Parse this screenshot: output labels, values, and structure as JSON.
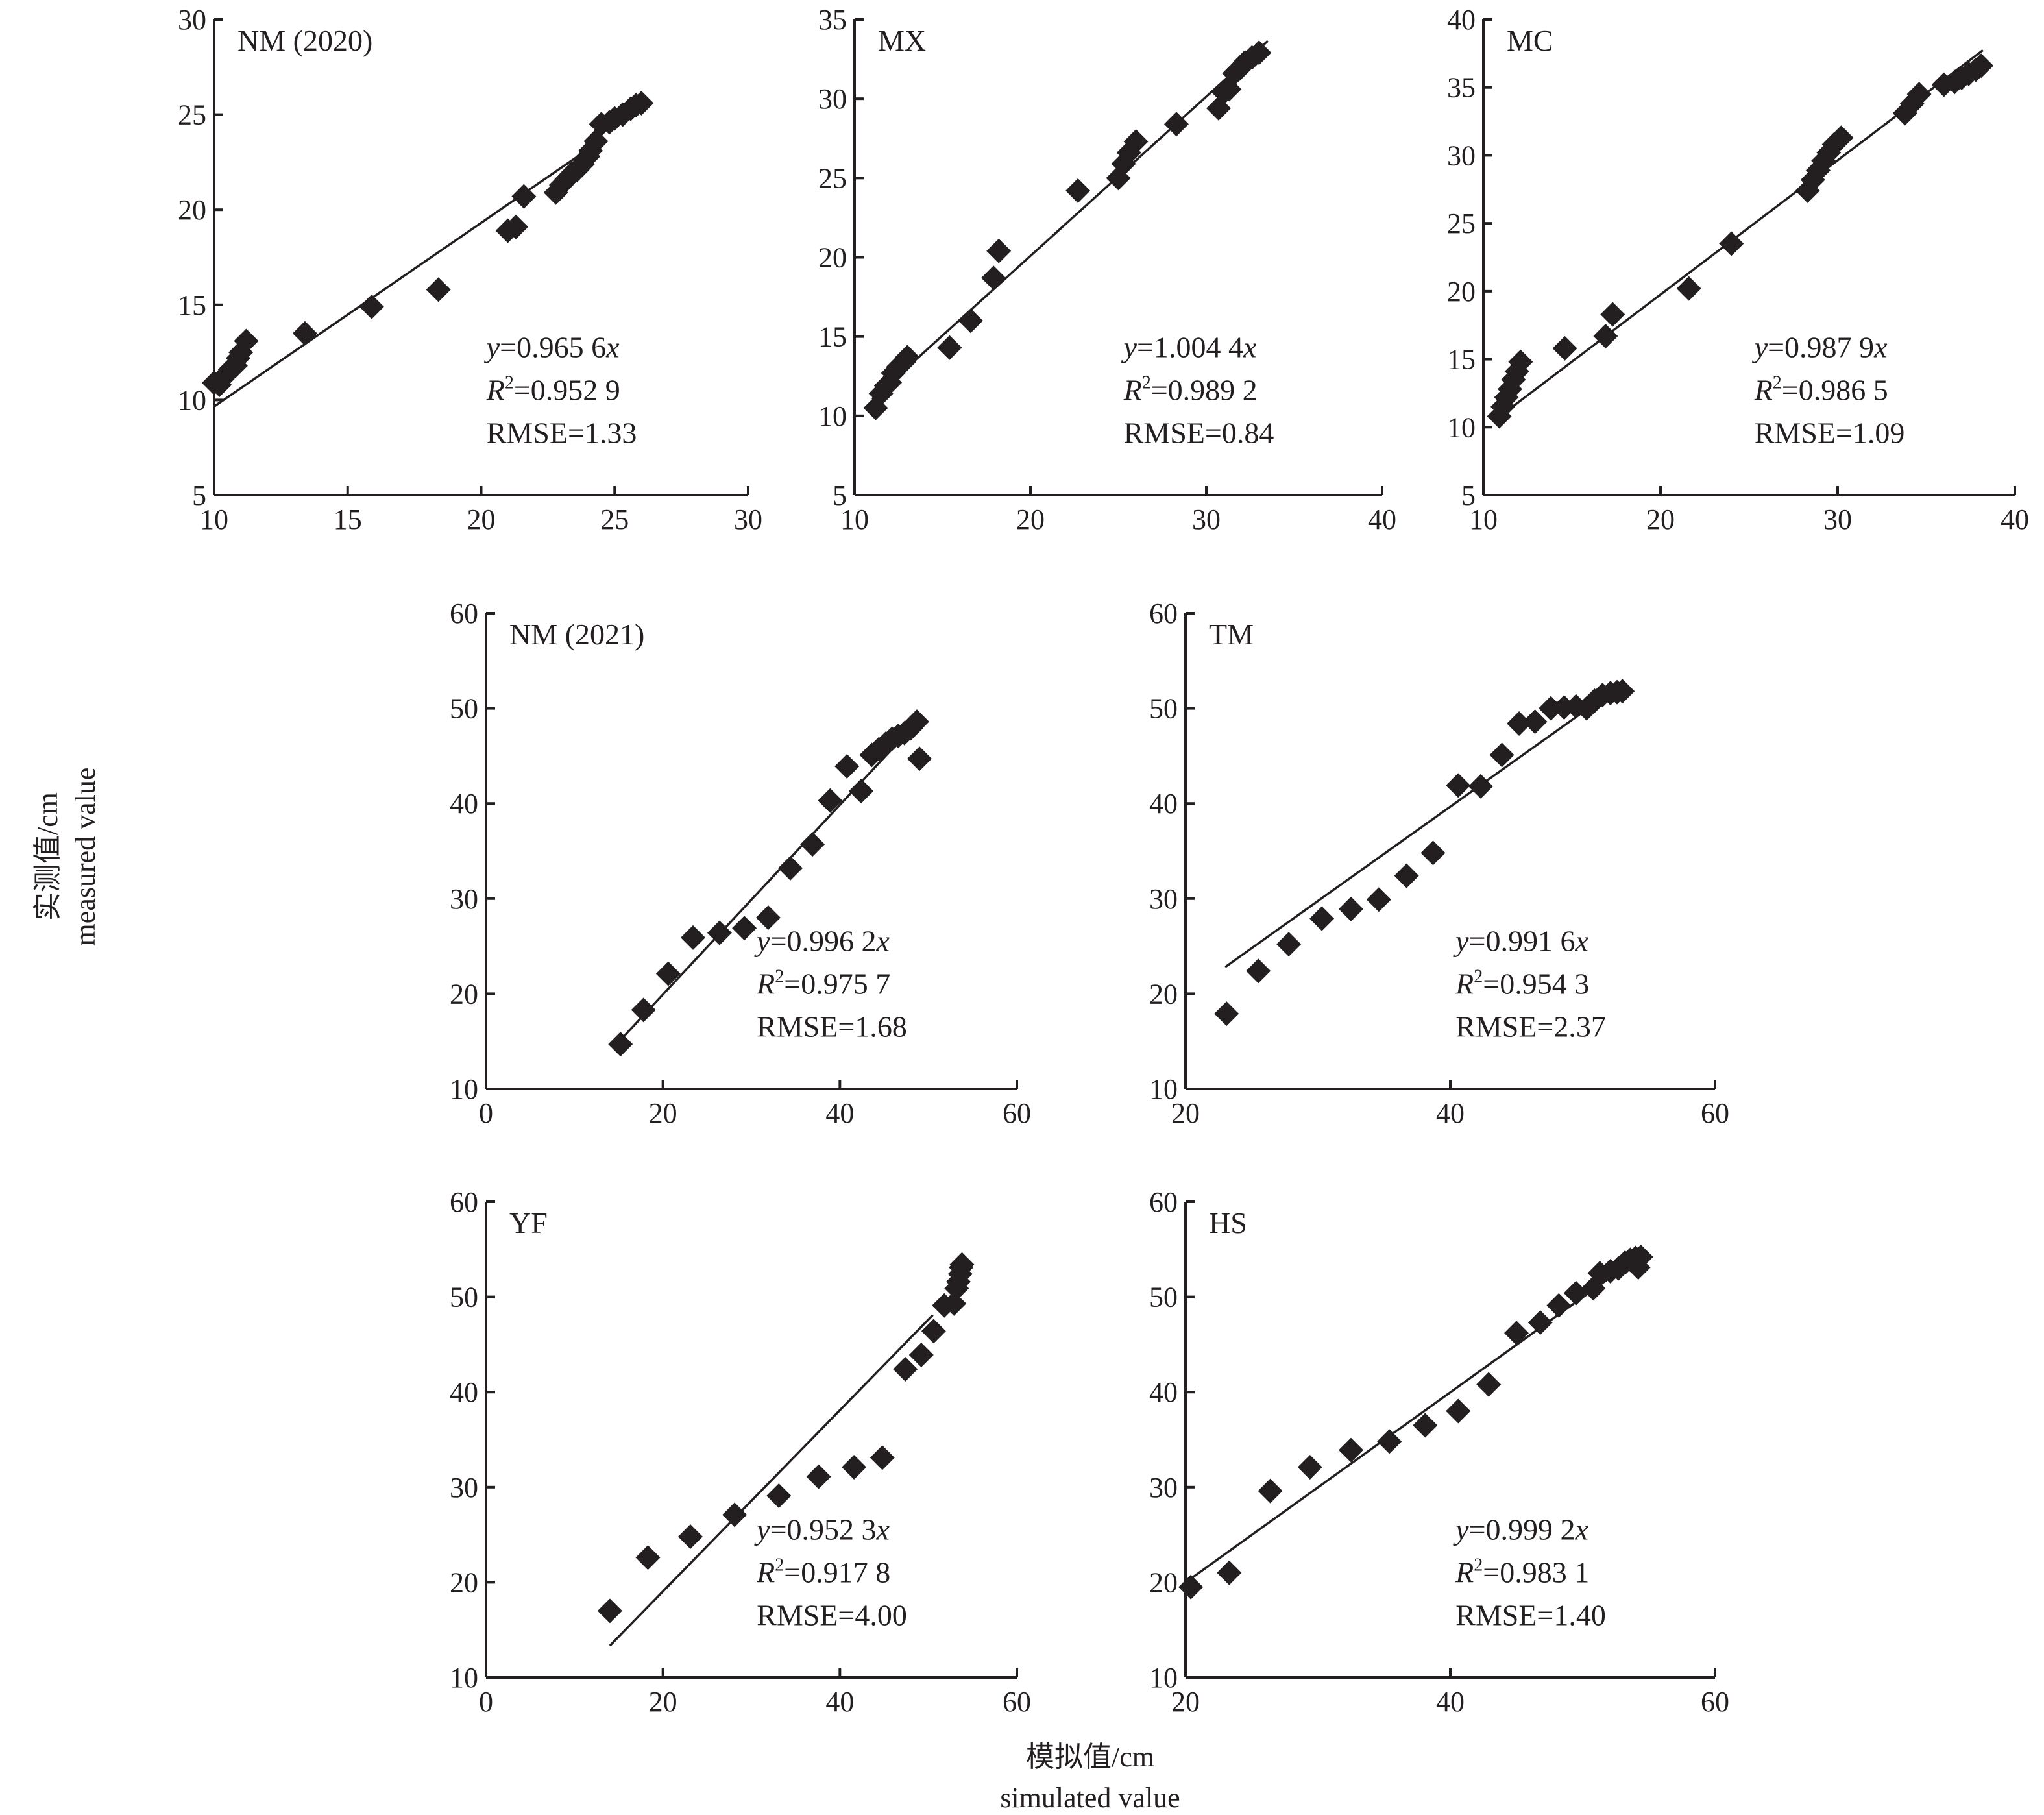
{
  "figure": {
    "y_axis_label_cn": "实测值/cm",
    "y_axis_label_en": "measured value",
    "x_axis_label_cn": "模拟值/cm",
    "x_axis_label_en": "simulated value"
  },
  "chart_data": [
    {
      "id": "nm2020",
      "type": "scatter",
      "title": "NM (2020)",
      "xlim": [
        10,
        30
      ],
      "ylim": [
        5,
        30
      ],
      "xticks": [
        10,
        15,
        20,
        25,
        30
      ],
      "yticks": [
        5,
        10,
        15,
        20,
        25,
        30
      ],
      "fit": {
        "slope": 0.9656,
        "x_range": [
          10,
          24.5
        ]
      },
      "stats": {
        "equation_prefix": "y",
        "equation_value": "=0.965 6",
        "equation_suffix": "x",
        "r2_label": "R",
        "r2_value": "=0.952 9",
        "rmse": "RMSE=1.33"
      },
      "points": [
        [
          10.0,
          10.9
        ],
        [
          10.2,
          10.8
        ],
        [
          10.3,
          11.1
        ],
        [
          10.5,
          11.4
        ],
        [
          10.6,
          11.6
        ],
        [
          10.8,
          11.8
        ],
        [
          10.9,
          12.2
        ],
        [
          11.0,
          12.5
        ],
        [
          11.2,
          13.1
        ],
        [
          13.4,
          13.5
        ],
        [
          15.9,
          14.9
        ],
        [
          18.4,
          15.8
        ],
        [
          21.0,
          18.9
        ],
        [
          21.3,
          19.1
        ],
        [
          21.6,
          20.7
        ],
        [
          22.8,
          20.9
        ],
        [
          23.0,
          21.3
        ],
        [
          23.2,
          21.6
        ],
        [
          23.4,
          21.9
        ],
        [
          23.6,
          22.1
        ],
        [
          23.8,
          22.4
        ],
        [
          24.0,
          22.8
        ],
        [
          24.1,
          23.1
        ],
        [
          24.3,
          23.6
        ],
        [
          24.5,
          24.5
        ],
        [
          24.8,
          24.6
        ],
        [
          25.0,
          24.8
        ],
        [
          25.3,
          25.0
        ],
        [
          25.6,
          25.3
        ],
        [
          25.8,
          25.5
        ],
        [
          26.0,
          25.6
        ]
      ]
    },
    {
      "id": "mx",
      "type": "scatter",
      "title": "MX",
      "xlim": [
        10,
        40
      ],
      "ylim": [
        5,
        35
      ],
      "xticks": [
        10,
        20,
        30,
        40
      ],
      "yticks": [
        5,
        10,
        15,
        20,
        25,
        30,
        35
      ],
      "fit": {
        "slope": 1.0044,
        "x_range": [
          11,
          33.5
        ]
      },
      "stats": {
        "equation_prefix": "y",
        "equation_value": "=1.004 4",
        "equation_suffix": "x",
        "r2_label": "R",
        "r2_value": "=0.989 2",
        "rmse": "RMSE=0.84"
      },
      "points": [
        [
          11.2,
          10.5
        ],
        [
          11.5,
          11.4
        ],
        [
          11.8,
          11.9
        ],
        [
          12.0,
          12.1
        ],
        [
          12.2,
          12.7
        ],
        [
          12.5,
          13.1
        ],
        [
          12.8,
          13.4
        ],
        [
          13.0,
          13.7
        ],
        [
          15.4,
          14.3
        ],
        [
          16.6,
          16.0
        ],
        [
          17.9,
          18.7
        ],
        [
          18.2,
          20.4
        ],
        [
          22.7,
          24.2
        ],
        [
          25.0,
          25.0
        ],
        [
          25.3,
          25.9
        ],
        [
          25.6,
          26.6
        ],
        [
          26.0,
          27.3
        ],
        [
          28.3,
          28.4
        ],
        [
          30.7,
          29.4
        ],
        [
          31.0,
          30.4
        ],
        [
          31.3,
          30.6
        ],
        [
          31.6,
          31.6
        ],
        [
          31.9,
          31.9
        ],
        [
          32.2,
          32.3
        ],
        [
          32.6,
          32.6
        ],
        [
          33.0,
          32.9
        ]
      ]
    },
    {
      "id": "mc",
      "type": "scatter",
      "title": "MC",
      "xlim": [
        10,
        40
      ],
      "ylim": [
        5,
        40
      ],
      "xticks": [
        10,
        20,
        30,
        40
      ],
      "yticks": [
        5,
        10,
        15,
        20,
        25,
        30,
        35,
        40
      ],
      "fit": {
        "slope": 0.9879,
        "x_range": [
          11.2,
          38.2
        ]
      },
      "stats": {
        "equation_prefix": "y",
        "equation_value": "=0.987 9",
        "equation_suffix": "x",
        "r2_label": "R",
        "r2_value": "=0.986 5",
        "rmse": "RMSE=1.09"
      },
      "points": [
        [
          10.9,
          10.8
        ],
        [
          11.1,
          11.5
        ],
        [
          11.3,
          12.2
        ],
        [
          11.5,
          12.8
        ],
        [
          11.7,
          13.5
        ],
        [
          11.9,
          14.1
        ],
        [
          12.1,
          14.8
        ],
        [
          14.6,
          15.8
        ],
        [
          16.9,
          16.7
        ],
        [
          17.3,
          18.3
        ],
        [
          21.6,
          20.2
        ],
        [
          24.0,
          23.5
        ],
        [
          28.3,
          27.4
        ],
        [
          28.6,
          28.2
        ],
        [
          28.9,
          28.9
        ],
        [
          29.2,
          29.6
        ],
        [
          29.5,
          30.2
        ],
        [
          29.8,
          30.8
        ],
        [
          30.2,
          31.3
        ],
        [
          33.8,
          33.1
        ],
        [
          34.2,
          33.8
        ],
        [
          34.6,
          34.5
        ],
        [
          36.0,
          35.2
        ],
        [
          36.6,
          35.4
        ],
        [
          37.0,
          35.7
        ],
        [
          37.4,
          36.0
        ],
        [
          37.8,
          36.3
        ],
        [
          38.1,
          36.6
        ]
      ]
    },
    {
      "id": "nm2021",
      "type": "scatter",
      "title": "NM (2021)",
      "xlim": [
        0,
        60
      ],
      "ylim": [
        10,
        60
      ],
      "xticks": [
        0,
        20,
        40,
        60
      ],
      "yticks": [
        10,
        20,
        30,
        40,
        50,
        60
      ],
      "fit": {
        "slope": 0.9962,
        "x_range": [
          15.5,
          47
        ]
      },
      "stats": {
        "equation_prefix": "y",
        "equation_value": "=0.996 2",
        "equation_suffix": "x",
        "r2_label": "R",
        "r2_value": "=0.975 7",
        "rmse": "RMSE=1.68"
      },
      "points": [
        [
          15.2,
          14.7
        ],
        [
          17.8,
          18.3
        ],
        [
          20.6,
          22.1
        ],
        [
          23.4,
          25.9
        ],
        [
          26.4,
          26.4
        ],
        [
          29.2,
          26.9
        ],
        [
          31.9,
          28.0
        ],
        [
          34.4,
          33.2
        ],
        [
          36.9,
          35.7
        ],
        [
          38.9,
          40.3
        ],
        [
          40.8,
          43.9
        ],
        [
          42.4,
          41.3
        ],
        [
          43.6,
          45.1
        ],
        [
          44.4,
          45.7
        ],
        [
          45.2,
          46.3
        ],
        [
          45.9,
          46.8
        ],
        [
          46.6,
          47.1
        ],
        [
          47.3,
          47.4
        ],
        [
          48.0,
          47.9
        ],
        [
          48.7,
          48.6
        ],
        [
          49.0,
          44.7
        ]
      ]
    },
    {
      "id": "tm",
      "type": "scatter",
      "title": "TM",
      "xlim": [
        20,
        60
      ],
      "ylim": [
        10,
        60
      ],
      "xticks": [
        20,
        40,
        60
      ],
      "yticks": [
        10,
        20,
        30,
        40,
        50,
        60
      ],
      "fit": {
        "slope": 0.9916,
        "x_range": [
          23,
          50
        ]
      },
      "stats": {
        "equation_prefix": "y",
        "equation_value": "=0.991 6",
        "equation_suffix": "x",
        "r2_label": "R",
        "r2_value": "=0.954 3",
        "rmse": "RMSE=2.37"
      },
      "points": [
        [
          23.1,
          17.9
        ],
        [
          25.5,
          22.4
        ],
        [
          27.8,
          25.2
        ],
        [
          30.3,
          27.9
        ],
        [
          32.5,
          28.9
        ],
        [
          34.6,
          29.9
        ],
        [
          36.7,
          32.4
        ],
        [
          38.7,
          34.8
        ],
        [
          40.6,
          41.9
        ],
        [
          42.3,
          41.8
        ],
        [
          43.9,
          45.1
        ],
        [
          45.2,
          48.4
        ],
        [
          46.4,
          48.6
        ],
        [
          47.6,
          50.0
        ],
        [
          48.6,
          50.1
        ],
        [
          49.5,
          50.2
        ],
        [
          50.3,
          50.0
        ],
        [
          50.9,
          50.8
        ],
        [
          51.5,
          51.4
        ],
        [
          52.1,
          51.6
        ],
        [
          52.6,
          51.7
        ],
        [
          53.0,
          51.8
        ]
      ]
    },
    {
      "id": "yf",
      "type": "scatter",
      "title": "YF",
      "xlim": [
        0,
        60
      ],
      "ylim": [
        10,
        60
      ],
      "xticks": [
        0,
        20,
        40,
        60
      ],
      "yticks": [
        10,
        20,
        30,
        40,
        50,
        60
      ],
      "fit": {
        "slope": 0.9523,
        "x_range": [
          14,
          50.5
        ]
      },
      "stats": {
        "equation_prefix": "y",
        "equation_value": "=0.952 3",
        "equation_suffix": "x",
        "r2_label": "R",
        "r2_value": "=0.917 8",
        "rmse": "RMSE=4.00"
      },
      "points": [
        [
          14.0,
          17.0
        ],
        [
          18.3,
          22.6
        ],
        [
          23.1,
          24.8
        ],
        [
          28.1,
          27.1
        ],
        [
          33.1,
          29.1
        ],
        [
          37.6,
          31.1
        ],
        [
          41.6,
          32.1
        ],
        [
          44.8,
          33.1
        ],
        [
          47.4,
          42.4
        ],
        [
          49.2,
          43.9
        ],
        [
          50.6,
          46.4
        ],
        [
          51.8,
          49.1
        ],
        [
          52.9,
          49.3
        ],
        [
          53.2,
          50.9
        ],
        [
          53.4,
          51.6
        ],
        [
          53.6,
          52.4
        ],
        [
          53.7,
          53.1
        ],
        [
          53.8,
          53.4
        ]
      ]
    },
    {
      "id": "hs",
      "type": "scatter",
      "title": "HS",
      "xlim": [
        20,
        60
      ],
      "ylim": [
        10,
        60
      ],
      "xticks": [
        20,
        40,
        60
      ],
      "yticks": [
        10,
        20,
        30,
        40,
        50,
        60
      ],
      "fit": {
        "slope": 0.9992,
        "x_range": [
          20.3,
          54
        ]
      },
      "stats": {
        "equation_prefix": "y",
        "equation_value": "=0.999 2",
        "equation_suffix": "x",
        "r2_label": "R",
        "r2_value": "=0.983 1",
        "rmse": "RMSE=1.40"
      },
      "points": [
        [
          20.4,
          19.5
        ],
        [
          23.3,
          21.0
        ],
        [
          26.4,
          29.6
        ],
        [
          29.4,
          32.1
        ],
        [
          32.5,
          33.9
        ],
        [
          35.4,
          34.8
        ],
        [
          38.1,
          36.5
        ],
        [
          40.6,
          38.0
        ],
        [
          42.9,
          40.8
        ],
        [
          45.0,
          46.2
        ],
        [
          46.8,
          47.3
        ],
        [
          48.2,
          49.1
        ],
        [
          49.5,
          50.4
        ],
        [
          50.8,
          50.9
        ],
        [
          51.3,
          52.5
        ],
        [
          52.1,
          52.7
        ],
        [
          52.7,
          53.0
        ],
        [
          53.2,
          53.6
        ],
        [
          53.6,
          53.9
        ],
        [
          54.0,
          54.1
        ],
        [
          54.2,
          53.1
        ],
        [
          54.4,
          54.2
        ]
      ]
    }
  ]
}
